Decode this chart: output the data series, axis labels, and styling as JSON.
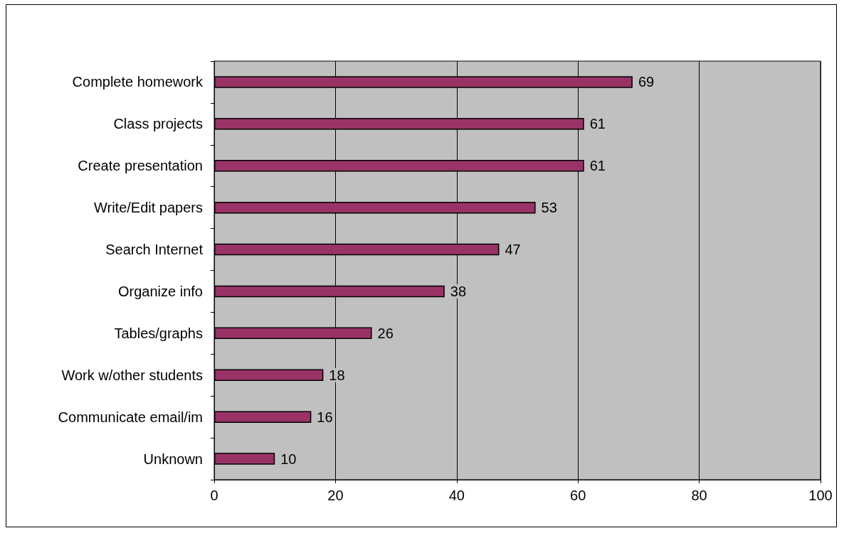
{
  "chart_data": {
    "type": "bar",
    "orientation": "horizontal",
    "categories": [
      "Complete homework",
      "Class projects",
      "Create presentation",
      "Write/Edit papers",
      "Search Internet",
      "Organize info",
      "Tables/graphs",
      "Work w/other students",
      "Communicate email/im",
      "Unknown"
    ],
    "values": [
      69,
      61,
      61,
      53,
      47,
      38,
      26,
      18,
      16,
      10
    ],
    "color": "#993366",
    "xlim": [
      0,
      100
    ],
    "xticks": [
      0,
      20,
      40,
      60,
      80,
      100
    ],
    "grid": "x",
    "data_labels": true
  }
}
